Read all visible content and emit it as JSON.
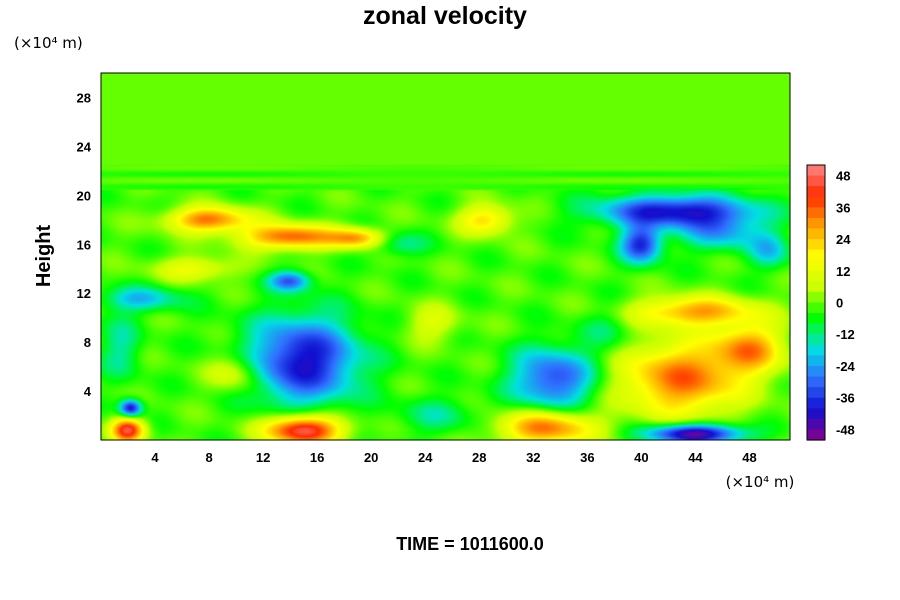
{
  "chart_data": {
    "type": "heatmap",
    "title": "zonal velocity",
    "ylabel": "Height",
    "x_unit": "(×10⁴ m)",
    "y_unit": "(×10⁴ m)",
    "x_ticks": [
      4,
      8,
      12,
      16,
      20,
      24,
      28,
      32,
      36,
      40,
      44,
      48
    ],
    "y_ticks": [
      4,
      8,
      12,
      16,
      20,
      24,
      28
    ],
    "xlim": [
      0,
      51
    ],
    "ylim": [
      0,
      30
    ],
    "colorbar_ticks": [
      48,
      36,
      24,
      12,
      0,
      -12,
      -24,
      -36,
      -48
    ],
    "clim": [
      -52,
      52
    ],
    "colors": [
      "#8b008b",
      "#1010d0",
      "#3070ff",
      "#00e0e0",
      "#00ff00",
      "#c8ff00",
      "#ffff00",
      "#ffa000",
      "#ff2a00",
      "#ff8888"
    ],
    "background_value": -2,
    "features": [
      {
        "x": 15.0,
        "y": 6.5,
        "rx": 4.0,
        "ry": 3.5,
        "v": -42
      },
      {
        "x": 33.5,
        "y": 5.0,
        "rx": 3.0,
        "ry": 2.5,
        "v": -34
      },
      {
        "x": 43.0,
        "y": 5.0,
        "rx": 4.5,
        "ry": 3.0,
        "v": 34
      },
      {
        "x": 48.0,
        "y": 7.5,
        "rx": 2.5,
        "ry": 2.0,
        "v": 28
      },
      {
        "x": 44.0,
        "y": 10.5,
        "rx": 4.5,
        "ry": 1.2,
        "v": 28
      },
      {
        "x": 42.5,
        "y": 18.7,
        "rx": 5.5,
        "ry": 1.3,
        "v": -42
      },
      {
        "x": 40.0,
        "y": 16.0,
        "rx": 1.5,
        "ry": 1.5,
        "v": -38
      },
      {
        "x": 46.0,
        "y": 17.0,
        "rx": 3.0,
        "ry": 1.5,
        "v": -22
      },
      {
        "x": 8.0,
        "y": 18.0,
        "rx": 3.0,
        "ry": 1.0,
        "v": 34
      },
      {
        "x": 14.0,
        "y": 16.6,
        "rx": 3.5,
        "ry": 1.0,
        "v": 36
      },
      {
        "x": 19.0,
        "y": 16.5,
        "rx": 2.0,
        "ry": 0.8,
        "v": 26
      },
      {
        "x": 15.0,
        "y": 0.8,
        "rx": 2.8,
        "ry": 1.2,
        "v": 50
      },
      {
        "x": 33.0,
        "y": 1.0,
        "rx": 3.5,
        "ry": 1.4,
        "v": 34
      },
      {
        "x": 44.0,
        "y": 0.5,
        "rx": 3.5,
        "ry": 0.8,
        "v": -50
      },
      {
        "x": 2.0,
        "y": 0.8,
        "rx": 1.2,
        "ry": 1.0,
        "v": 44
      },
      {
        "x": 2.2,
        "y": 2.6,
        "rx": 0.8,
        "ry": 0.7,
        "v": -42
      },
      {
        "x": 14.0,
        "y": 13.0,
        "rx": 1.5,
        "ry": 0.8,
        "v": -30
      },
      {
        "x": 3.0,
        "y": 11.5,
        "rx": 3.0,
        "ry": 1.0,
        "v": -20
      },
      {
        "x": 1.5,
        "y": 7.5,
        "rx": 1.5,
        "ry": 2.5,
        "v": -14
      },
      {
        "x": 28.5,
        "y": 18.0,
        "rx": 2.0,
        "ry": 1.2,
        "v": 22
      },
      {
        "x": 22.0,
        "y": 16.0,
        "rx": 2.0,
        "ry": 1.0,
        "v": -14
      },
      {
        "x": 10.0,
        "y": 5.5,
        "rx": 2.0,
        "ry": 1.5,
        "v": 14
      },
      {
        "x": 24.5,
        "y": 9.5,
        "rx": 2.0,
        "ry": 1.5,
        "v": 10
      },
      {
        "x": 37.5,
        "y": 9.0,
        "rx": 2.0,
        "ry": 2.0,
        "v": -10
      },
      {
        "x": 25.0,
        "y": 2.0,
        "rx": 3.0,
        "ry": 1.5,
        "v": -12
      },
      {
        "x": 49.5,
        "y": 15.5,
        "rx": 1.5,
        "ry": 1.5,
        "v": -18
      },
      {
        "x": 7.0,
        "y": 14.0,
        "rx": 3.0,
        "ry": 1.0,
        "v": 14
      }
    ]
  },
  "footer": {
    "time_label": "TIME = 1011600.0"
  }
}
